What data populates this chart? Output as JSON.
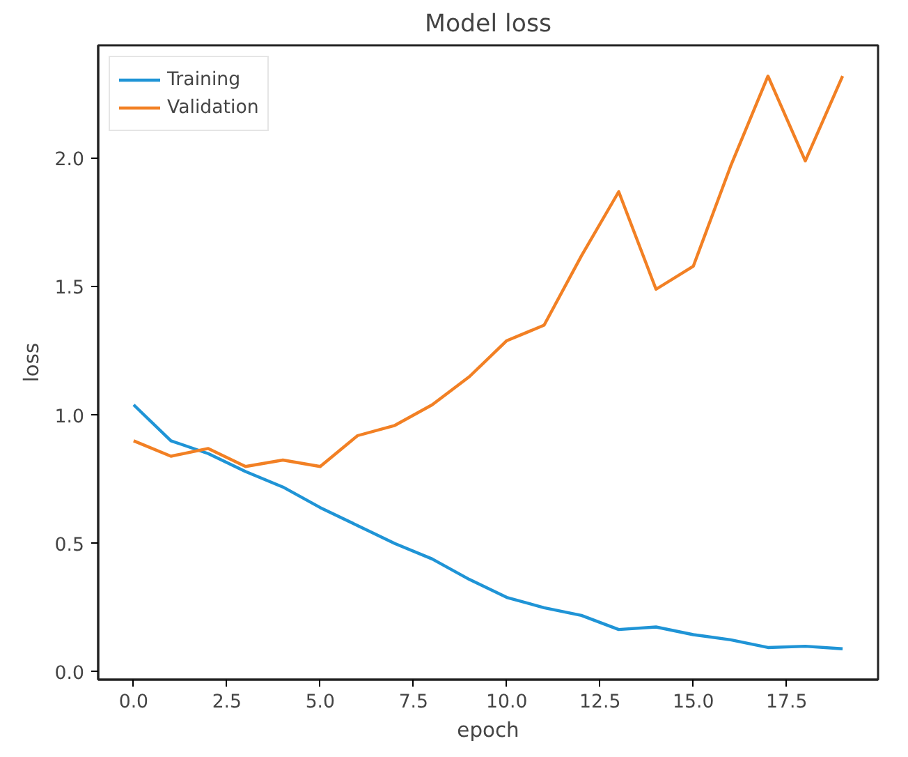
{
  "chart_data": {
    "type": "line",
    "title": "Model loss",
    "xlabel": "epoch",
    "ylabel": "loss",
    "x": [
      0,
      1,
      2,
      3,
      4,
      5,
      6,
      7,
      8,
      9,
      10,
      11,
      12,
      13,
      14,
      15,
      16,
      17,
      18,
      19
    ],
    "series": [
      {
        "name": "Training",
        "color": "#1f94d6",
        "values": [
          1.04,
          0.9,
          0.85,
          0.78,
          0.72,
          0.64,
          0.57,
          0.5,
          0.44,
          0.36,
          0.29,
          0.25,
          0.22,
          0.165,
          0.175,
          0.145,
          0.125,
          0.095,
          0.1,
          0.09
        ]
      },
      {
        "name": "Validation",
        "color": "#f28024",
        "values": [
          0.9,
          0.84,
          0.87,
          0.8,
          0.825,
          0.8,
          0.92,
          0.96,
          1.04,
          1.15,
          1.29,
          1.35,
          1.62,
          1.87,
          1.49,
          1.58,
          1.97,
          2.32,
          1.99,
          2.32
        ]
      }
    ],
    "xlim": [
      -0.95,
      19.95
    ],
    "ylim": [
      -0.03,
      2.44
    ],
    "xticks": [
      {
        "value": 0,
        "label": "0.0"
      },
      {
        "value": 2.5,
        "label": "2.5"
      },
      {
        "value": 5,
        "label": "5.0"
      },
      {
        "value": 7.5,
        "label": "7.5"
      },
      {
        "value": 10,
        "label": "10.0"
      },
      {
        "value": 12.5,
        "label": "12.5"
      },
      {
        "value": 15,
        "label": "15.0"
      },
      {
        "value": 17.5,
        "label": "17.5"
      }
    ],
    "yticks": [
      {
        "value": 0,
        "label": "0.0"
      },
      {
        "value": 0.5,
        "label": "0.5"
      },
      {
        "value": 1,
        "label": "1.0"
      },
      {
        "value": 1.5,
        "label": "1.5"
      },
      {
        "value": 2,
        "label": "2.0"
      }
    ],
    "legend": "top left",
    "grid": false,
    "line_style": "solid",
    "marker": "none"
  }
}
